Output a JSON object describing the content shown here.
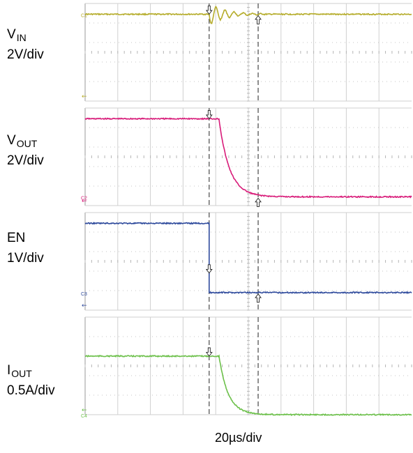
{
  "chart_data": [
    {
      "type": "line",
      "channel": "C1",
      "label_main": "V",
      "label_sub": "IN",
      "scale": "2V/div",
      "color": "#b5ac2a",
      "series": [
        {
          "segments": [
            {
              "kind": "flat",
              "t": [
                0,
                3.8
              ],
              "div": 0
            },
            {
              "kind": "ring",
              "t": [
                3.8,
                5.5
              ],
              "div": 0,
              "amp": 0.55,
              "freq": 3.6
            },
            {
              "kind": "flat",
              "t": [
                5.5,
                10
              ],
              "div": 0
            }
          ]
        }
      ]
    },
    {
      "type": "line",
      "channel": "C2",
      "label_main": "V",
      "label_sub": "OUT",
      "scale": "2V/div",
      "color": "#d81b79",
      "series": [
        {
          "segments": [
            {
              "kind": "flat",
              "t": [
                0,
                3.8
              ],
              "div": 0
            },
            {
              "kind": "fall",
              "t": [
                3.8,
                10
              ],
              "from": 0,
              "to": 4.0,
              "delay": 0.3,
              "tau": 0.32
            }
          ]
        }
      ]
    },
    {
      "type": "line",
      "channel": "C3",
      "label_main": "EN",
      "label_sub": "",
      "scale": "1V/div",
      "color": "#2e4a9c",
      "series": [
        {
          "segments": [
            {
              "kind": "flat",
              "t": [
                0,
                3.8
              ],
              "div": 0
            },
            {
              "kind": "step",
              "t": [
                3.8,
                10
              ],
              "from": 0,
              "to": 3.55
            }
          ]
        }
      ]
    },
    {
      "type": "line",
      "channel": "C4",
      "label_main": "I",
      "label_sub": "OUT",
      "scale": "0.5A/div",
      "color": "#6cc04a",
      "series": [
        {
          "segments": [
            {
              "kind": "flat",
              "t": [
                0,
                3.8
              ],
              "div": 2
            },
            {
              "kind": "fall",
              "t": [
                3.8,
                10
              ],
              "from": 2,
              "to": 5.0,
              "delay": 0.3,
              "tau": 0.28
            }
          ]
        }
      ]
    }
  ],
  "cursors": {
    "t1": 3.8,
    "t2": 5.3
  },
  "time_divisions": 10,
  "vertical_divisions": 5,
  "timebase": "20µs/div"
}
